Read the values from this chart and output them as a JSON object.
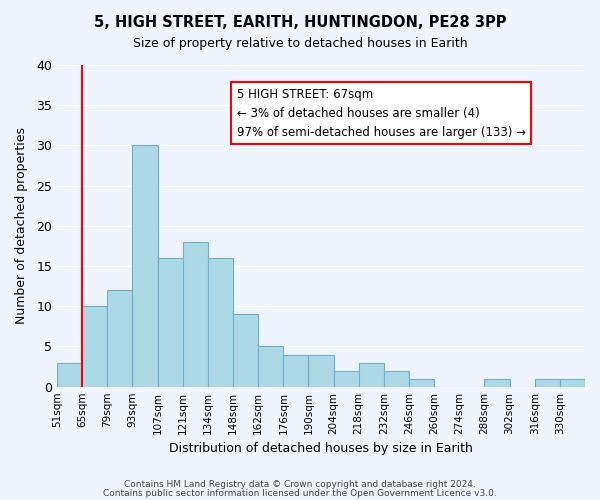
{
  "title": "5, HIGH STREET, EARITH, HUNTINGDON, PE28 3PP",
  "subtitle": "Size of property relative to detached houses in Earith",
  "xlabel": "Distribution of detached houses by size in Earith",
  "ylabel": "Number of detached properties",
  "bin_labels": [
    "51sqm",
    "65sqm",
    "79sqm",
    "93sqm",
    "107sqm",
    "121sqm",
    "134sqm",
    "148sqm",
    "162sqm",
    "176sqm",
    "190sqm",
    "204sqm",
    "218sqm",
    "232sqm",
    "246sqm",
    "260sqm",
    "274sqm",
    "288sqm",
    "302sqm",
    "316sqm",
    "330sqm"
  ],
  "bar_heights": [
    3,
    10,
    12,
    30,
    16,
    18,
    16,
    9,
    5,
    4,
    4,
    2,
    3,
    2,
    1,
    0,
    0,
    1,
    0,
    1,
    1
  ],
  "bar_color": "#add8e6",
  "bar_edge_color": "#6baed6",
  "vline_x": 1,
  "vline_color": "red",
  "annotation_title": "5 HIGH STREET: 67sqm",
  "annotation_line1": "← 3% of detached houses are smaller (4)",
  "annotation_line2": "97% of semi-detached houses are larger (133) →",
  "annotation_box_color": "white",
  "annotation_box_edge": "red",
  "ylim": [
    0,
    40
  ],
  "yticks": [
    0,
    5,
    10,
    15,
    20,
    25,
    30,
    35,
    40
  ],
  "footer1": "Contains HM Land Registry data © Crown copyright and database right 2024.",
  "footer2": "Contains public sector information licensed under the Open Government Licence v3.0.",
  "bg_color": "#f0f4ff"
}
